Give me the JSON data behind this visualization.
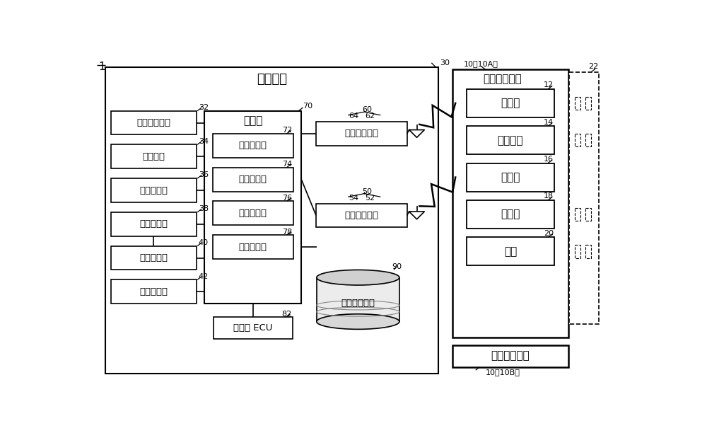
{
  "bg_color": "#ffffff",
  "fig_label": "1",
  "main_box_label": "车载装置",
  "main_box_ref": "30",
  "left_boxes": [
    {
      "label": "发动机开关部",
      "ref": "32"
    },
    {
      "label": "供电单元",
      "ref": "34"
    },
    {
      "label": "信息输出部",
      "ref": "36"
    },
    {
      "label": "门锁控制部",
      "ref": "38"
    },
    {
      "label": "车门传感器",
      "ref": "40"
    },
    {
      "label": "座椅控制部",
      "ref": "42"
    }
  ],
  "control_box_label": "控制部",
  "control_box_ref": "70",
  "control_sub_boxes": [
    {
      "label": "供电控制部",
      "ref": "72"
    },
    {
      "label": "通信控制部",
      "ref": "74"
    },
    {
      "label": "利用许可部",
      "ref": "76"
    },
    {
      "label": "用户管理部",
      "ref": "78"
    }
  ],
  "ecu_label": "发动机 ECU",
  "ecu_ref": "82",
  "indoor_label": "车室内通信部",
  "indoor_ref": "60",
  "indoor_ant_ref": "62",
  "indoor_brace_ref": "64",
  "outdoor_label": "车室外通信部",
  "outdoor_ref": "50",
  "outdoor_ant_ref": "52",
  "outdoor_brace_ref": "54",
  "storage_label": "车载侧存储部",
  "storage_ref": "90",
  "portable_A_label": "便携无线终端",
  "portable_A_ref": "10（10A）",
  "portable_sub_boxes": [
    {
      "label": "通信部",
      "ref": "12"
    },
    {
      "label": "控制单元",
      "ref": "14"
    },
    {
      "label": "存储部",
      "ref": "16"
    },
    {
      "label": "受电部",
      "ref": "18"
    },
    {
      "label": "电源",
      "ref": "20"
    }
  ],
  "dashed_ref": "22",
  "portable_B_label": "便携无线终端",
  "portable_B_ref": "10（10B）"
}
